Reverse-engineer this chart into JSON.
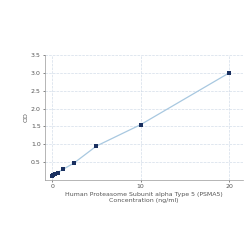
{
  "x": [
    0,
    0.156,
    0.313,
    0.625,
    1.25,
    2.5,
    5,
    10,
    20
  ],
  "y": [
    0.1,
    0.13,
    0.16,
    0.21,
    0.3,
    0.48,
    0.95,
    1.55,
    3.0
  ],
  "line_color": "#a8c8e0",
  "marker_color": "#1a3060",
  "marker_style": "s",
  "marker_size": 3,
  "line_width": 0.9,
  "xlabel_line1": "Human Proteasome Subunit alpha Type 5 (PSMA5)",
  "xlabel_line2": "Concentration (ng/ml)",
  "ylabel": "OD",
  "xlim": [
    -0.8,
    21.5
  ],
  "ylim": [
    0.0,
    3.5
  ],
  "yticks": [
    0.5,
    1.0,
    1.5,
    2.0,
    2.5,
    3.0,
    3.5
  ],
  "xticks": [
    0,
    10,
    20
  ],
  "grid_color": "#c8d4e4",
  "grid_style": "--",
  "grid_alpha": 0.8,
  "tick_fontsize": 4.5,
  "label_fontsize": 4.5,
  "bg_color": "#ffffff"
}
